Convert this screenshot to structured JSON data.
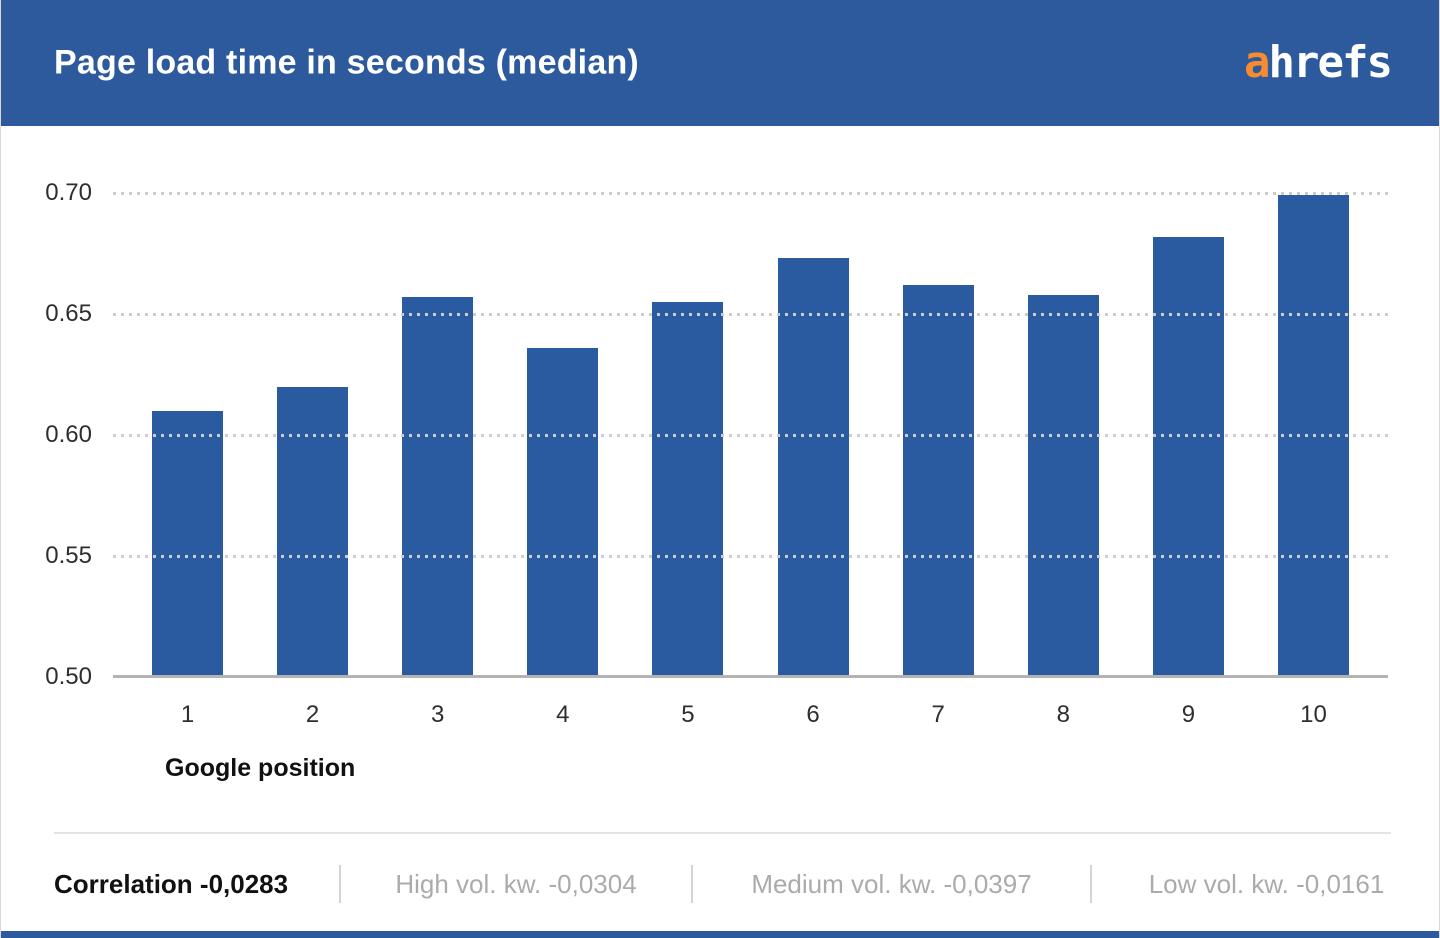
{
  "header": {
    "title": "Page load time in seconds (median)",
    "background_color": "#2d5a9c",
    "logo": {
      "name": "ahrefs-logo",
      "first_letter": "a",
      "rest": "hrefs",
      "first_letter_color": "#f78b30",
      "rest_color": "#ffffff"
    }
  },
  "chart_data": {
    "type": "bar",
    "title": "Page load time in seconds (median)",
    "categories": [
      "1",
      "2",
      "3",
      "4",
      "5",
      "6",
      "7",
      "8",
      "9",
      "10"
    ],
    "values": [
      0.61,
      0.62,
      0.657,
      0.636,
      0.655,
      0.673,
      0.662,
      0.658,
      0.682,
      0.699
    ],
    "xlabel": "Google position",
    "ylabel": "",
    "ylim": [
      0.5,
      0.7
    ],
    "yticks": [
      0.7,
      0.65,
      0.6,
      0.55,
      0.5
    ],
    "ytick_labels": [
      "0.70",
      "0.65",
      "0.60",
      "0.55",
      "0.50"
    ],
    "grid": "horizontal-dotted",
    "legend": "none",
    "bar_color": "#2a5a9f"
  },
  "footer": {
    "stats": [
      {
        "label": "Correlation -0,0283",
        "emphasis": true
      },
      {
        "label": "High vol. kw. -0,0304",
        "emphasis": false
      },
      {
        "label": "Medium vol. kw. -0,0397",
        "emphasis": false
      },
      {
        "label": "Low vol. kw. -0,0161",
        "emphasis": false
      }
    ]
  }
}
